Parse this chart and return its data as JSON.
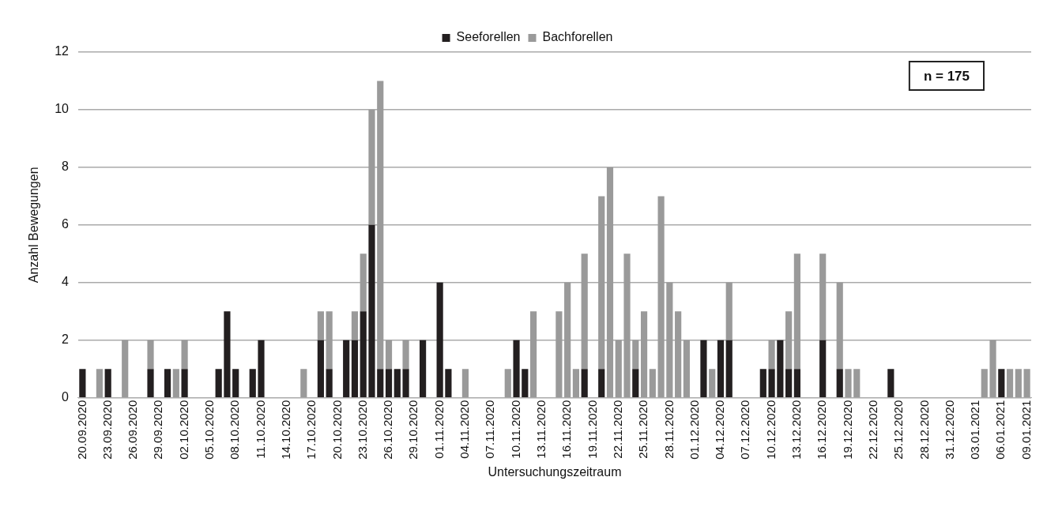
{
  "chart_data": {
    "type": "bar",
    "stacked": true,
    "xlabel": "Untersuchungszeitraum",
    "ylabel": "Anzahl Bewegungen",
    "legend": "top",
    "grid": "y",
    "ylim": [
      0,
      12
    ],
    "yticks": [
      0,
      2,
      4,
      6,
      8,
      10,
      12
    ],
    "annotations": [
      "n = 175"
    ],
    "categories": [
      "20.09.2020",
      null,
      null,
      "23.09.2020",
      null,
      null,
      "26.09.2020",
      null,
      null,
      "29.09.2020",
      null,
      null,
      "02.10.2020",
      null,
      null,
      "05.10.2020",
      null,
      null,
      "08.10.2020",
      null,
      null,
      "11.10.2020",
      null,
      null,
      "14.10.2020",
      null,
      null,
      "17.10.2020",
      null,
      null,
      "20.10.2020",
      null,
      null,
      "23.10.2020",
      null,
      null,
      "26.10.2020",
      null,
      null,
      "29.10.2020",
      null,
      null,
      "01.11.2020",
      null,
      null,
      "04.11.2020",
      null,
      null,
      "07.11.2020",
      null,
      null,
      "10.11.2020",
      null,
      null,
      "13.11.2020",
      null,
      null,
      "16.11.2020",
      null,
      null,
      "19.11.2020",
      null,
      null,
      "22.11.2020",
      null,
      null,
      "25.11.2020",
      null,
      null,
      "28.11.2020",
      null,
      null,
      "01.12.2020",
      null,
      null,
      "04.12.2020",
      null,
      null,
      "07.12.2020",
      null,
      null,
      "10.12.2020",
      null,
      null,
      "13.12.2020",
      null,
      null,
      "16.12.2020",
      null,
      null,
      "19.12.2020",
      null,
      null,
      "22.12.2020",
      null,
      null,
      "25.12.2020",
      null,
      null,
      "28.12.2020",
      null,
      null,
      "31.12.2020",
      null,
      null,
      "03.01.2021",
      null,
      null,
      "06.01.2021",
      null,
      null,
      "09.01.2021"
    ],
    "series": [
      {
        "name": "Seeforellen",
        "color": "#231f20",
        "values": [
          1,
          0,
          0,
          1,
          0,
          0,
          0,
          0,
          1,
          0,
          1,
          0,
          1,
          0,
          0,
          0,
          1,
          3,
          1,
          0,
          1,
          2,
          0,
          0,
          0,
          0,
          0,
          0,
          2,
          1,
          0,
          2,
          2,
          3,
          6,
          1,
          1,
          1,
          1,
          0,
          2,
          0,
          4,
          1,
          0,
          0,
          0,
          0,
          0,
          0,
          0,
          2,
          1,
          0,
          0,
          0,
          0,
          0,
          0,
          1,
          0,
          1,
          0,
          0,
          0,
          1,
          0,
          0,
          0,
          0,
          0,
          0,
          0,
          2,
          0,
          2,
          2,
          0,
          0,
          0,
          1,
          1,
          2,
          1,
          1,
          0,
          0,
          2,
          0,
          1,
          0,
          0,
          0,
          0,
          0,
          1,
          0,
          0,
          0,
          0,
          0,
          0,
          0,
          0,
          0,
          0,
          0,
          0,
          1,
          0,
          0,
          0
        ]
      },
      {
        "name": "Bachforellen",
        "color": "#9a9a9a",
        "values": [
          0,
          0,
          1,
          0,
          0,
          2,
          0,
          0,
          1,
          0,
          0,
          1,
          1,
          0,
          0,
          0,
          0,
          0,
          0,
          0,
          0,
          0,
          0,
          0,
          0,
          0,
          1,
          0,
          1,
          2,
          0,
          0,
          1,
          2,
          4,
          10,
          1,
          0,
          1,
          0,
          0,
          0,
          0,
          0,
          0,
          1,
          0,
          0,
          0,
          0,
          1,
          0,
          0,
          3,
          0,
          0,
          3,
          4,
          1,
          4,
          0,
          6,
          8,
          2,
          5,
          1,
          3,
          1,
          7,
          4,
          3,
          2,
          0,
          0,
          1,
          0,
          2,
          0,
          0,
          0,
          0,
          1,
          0,
          2,
          4,
          0,
          0,
          3,
          0,
          3,
          1,
          1,
          0,
          0,
          0,
          0,
          0,
          0,
          0,
          0,
          0,
          0,
          0,
          0,
          0,
          0,
          1,
          2,
          0,
          1,
          1,
          1
        ]
      }
    ]
  }
}
